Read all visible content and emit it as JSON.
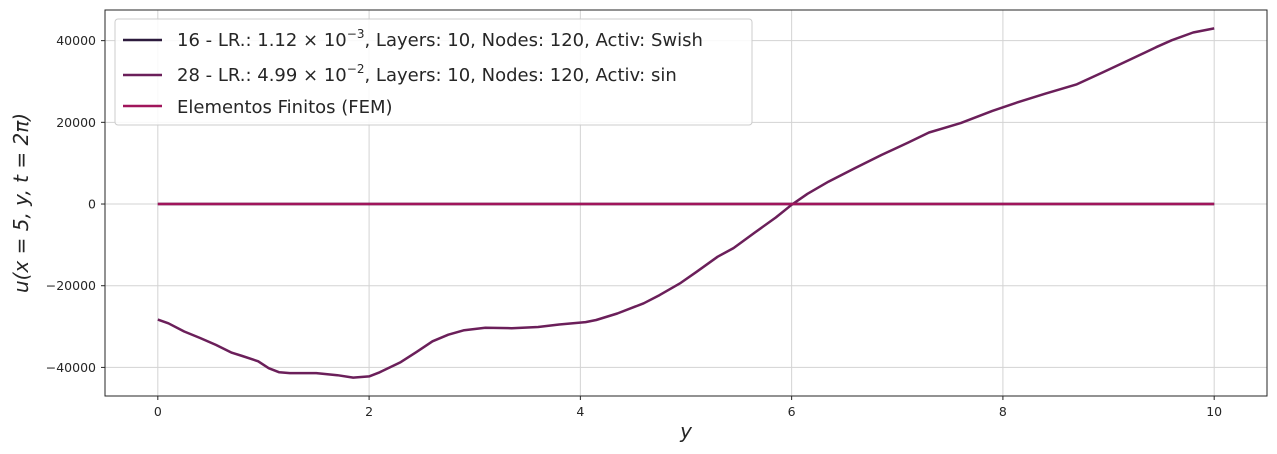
{
  "chart_data": {
    "type": "line",
    "title": "",
    "xlabel": "y",
    "ylabel": "u(x = 5, y, t = 2π)",
    "xlim": [
      -0.5,
      10.5
    ],
    "ylim": [
      -47000,
      47500
    ],
    "xticks": [
      0,
      2,
      4,
      6,
      8,
      10
    ],
    "xtick_labels": [
      "0",
      "2",
      "4",
      "6",
      "8",
      "10"
    ],
    "yticks": [
      -40000,
      -20000,
      0,
      20000,
      40000
    ],
    "ytick_labels": [
      "−40000",
      "−20000",
      "0",
      "20000",
      "40000"
    ],
    "grid": true,
    "legend_position": "top-left",
    "series": [
      {
        "name": "16 - LR.: 1.12 × 10⁻³, Layers: 10, Nodes: 120, Activ: Swish",
        "name_parts": {
          "a": "16 - LR.: 1.12 × 10",
          "exp": "−3",
          "b": ", Layers: 10, Nodes: 120, Activ: Swish"
        },
        "color": "#2d1b3d",
        "x": [
          0,
          10
        ],
        "y": [
          0,
          0
        ]
      },
      {
        "name": "28 - LR.: 4.99 × 10⁻², Layers: 10, Nodes: 120, Activ: sin",
        "name_parts": {
          "a": "28 - LR.: 4.99 × 10",
          "exp": "−2",
          "b": ", Layers: 10, Nodes: 120, Activ: sin"
        },
        "color": "#6b1f5a",
        "x": [
          0,
          0.1,
          0.25,
          0.4,
          0.55,
          0.7,
          0.8,
          0.95,
          1.05,
          1.15,
          1.25,
          1.5,
          1.7,
          1.85,
          2.0,
          2.1,
          2.3,
          2.45,
          2.6,
          2.75,
          2.9,
          3.1,
          3.35,
          3.6,
          3.8,
          4.05,
          4.15,
          4.35,
          4.6,
          4.75,
          4.95,
          5.1,
          5.3,
          5.45,
          5.65,
          5.85,
          6.0,
          6.15,
          6.35,
          6.6,
          6.85,
          7.1,
          7.3,
          7.6,
          7.9,
          8.15,
          8.4,
          8.7,
          8.95,
          9.2,
          9.45,
          9.6,
          9.8,
          10.0
        ],
        "y": [
          -28300,
          -29200,
          -31200,
          -32800,
          -34500,
          -36400,
          -37200,
          -38500,
          -40200,
          -41200,
          -41400,
          -41400,
          -41900,
          -42500,
          -42200,
          -41200,
          -38700,
          -36200,
          -33600,
          -32000,
          -30900,
          -30300,
          -30400,
          -30100,
          -29500,
          -28900,
          -28400,
          -26800,
          -24300,
          -22300,
          -19300,
          -16600,
          -12900,
          -10800,
          -7000,
          -3300,
          -200,
          2500,
          5500,
          8800,
          12000,
          15000,
          17500,
          19800,
          22800,
          25000,
          27000,
          29300,
          32300,
          35300,
          38400,
          40100,
          42000,
          43000
        ]
      },
      {
        "name": "Elementos Finitos (FEM)",
        "color": "#a0155b",
        "x": [
          0,
          10
        ],
        "y": [
          0,
          0
        ]
      }
    ]
  }
}
